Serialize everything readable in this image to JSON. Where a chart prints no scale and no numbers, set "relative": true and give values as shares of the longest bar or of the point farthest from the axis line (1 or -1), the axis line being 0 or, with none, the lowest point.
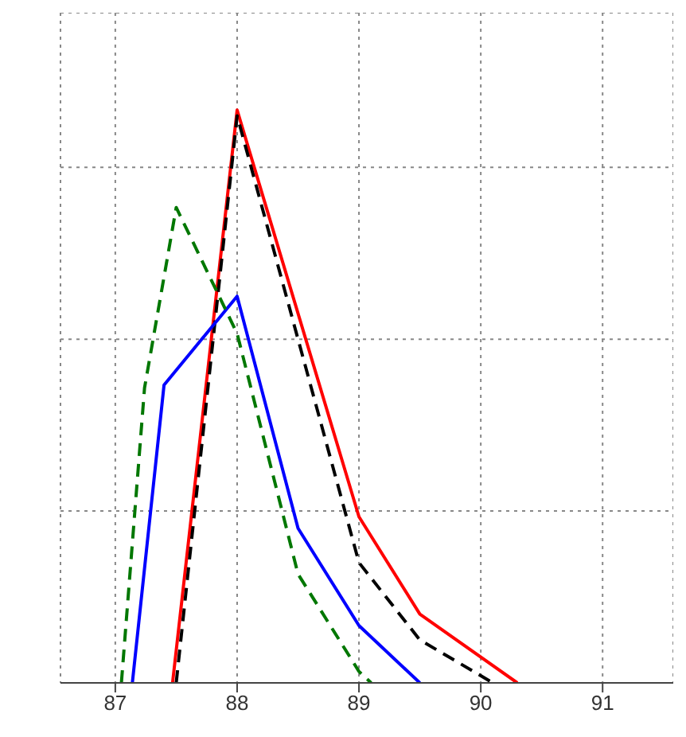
{
  "chart_data": {
    "type": "line",
    "relative": true,
    "xlim": [
      86.55,
      91.58
    ],
    "xticks": [
      87,
      88,
      89,
      90,
      91
    ],
    "grid": true,
    "marker": "none",
    "series": [
      {
        "color": "#ff0000",
        "line_style": "solid",
        "x": [
          87.47,
          88,
          89,
          89.5,
          90.3
        ],
        "values": [
          0,
          1,
          0.29,
          0.12,
          0
        ]
      },
      {
        "color": "#000000",
        "line_style": "dashed",
        "x": [
          87.5,
          88,
          89,
          89.5,
          90.1
        ],
        "values": [
          0,
          0.99,
          0.21,
          0.075,
          0
        ]
      },
      {
        "color": "#0000ff",
        "line_style": "solid",
        "x": [
          87.14,
          87.4,
          88,
          88.5,
          89,
          89.5
        ],
        "values": [
          0,
          0.52,
          0.675,
          0.27,
          0.1,
          0
        ]
      },
      {
        "color": "#007700",
        "line_style": "dashed",
        "x": [
          87.05,
          87.24,
          87.5,
          88,
          88.5,
          89,
          89.1
        ],
        "values": [
          0,
          0.515,
          0.83,
          0.61,
          0.19,
          0.02,
          0
        ]
      }
    ]
  }
}
